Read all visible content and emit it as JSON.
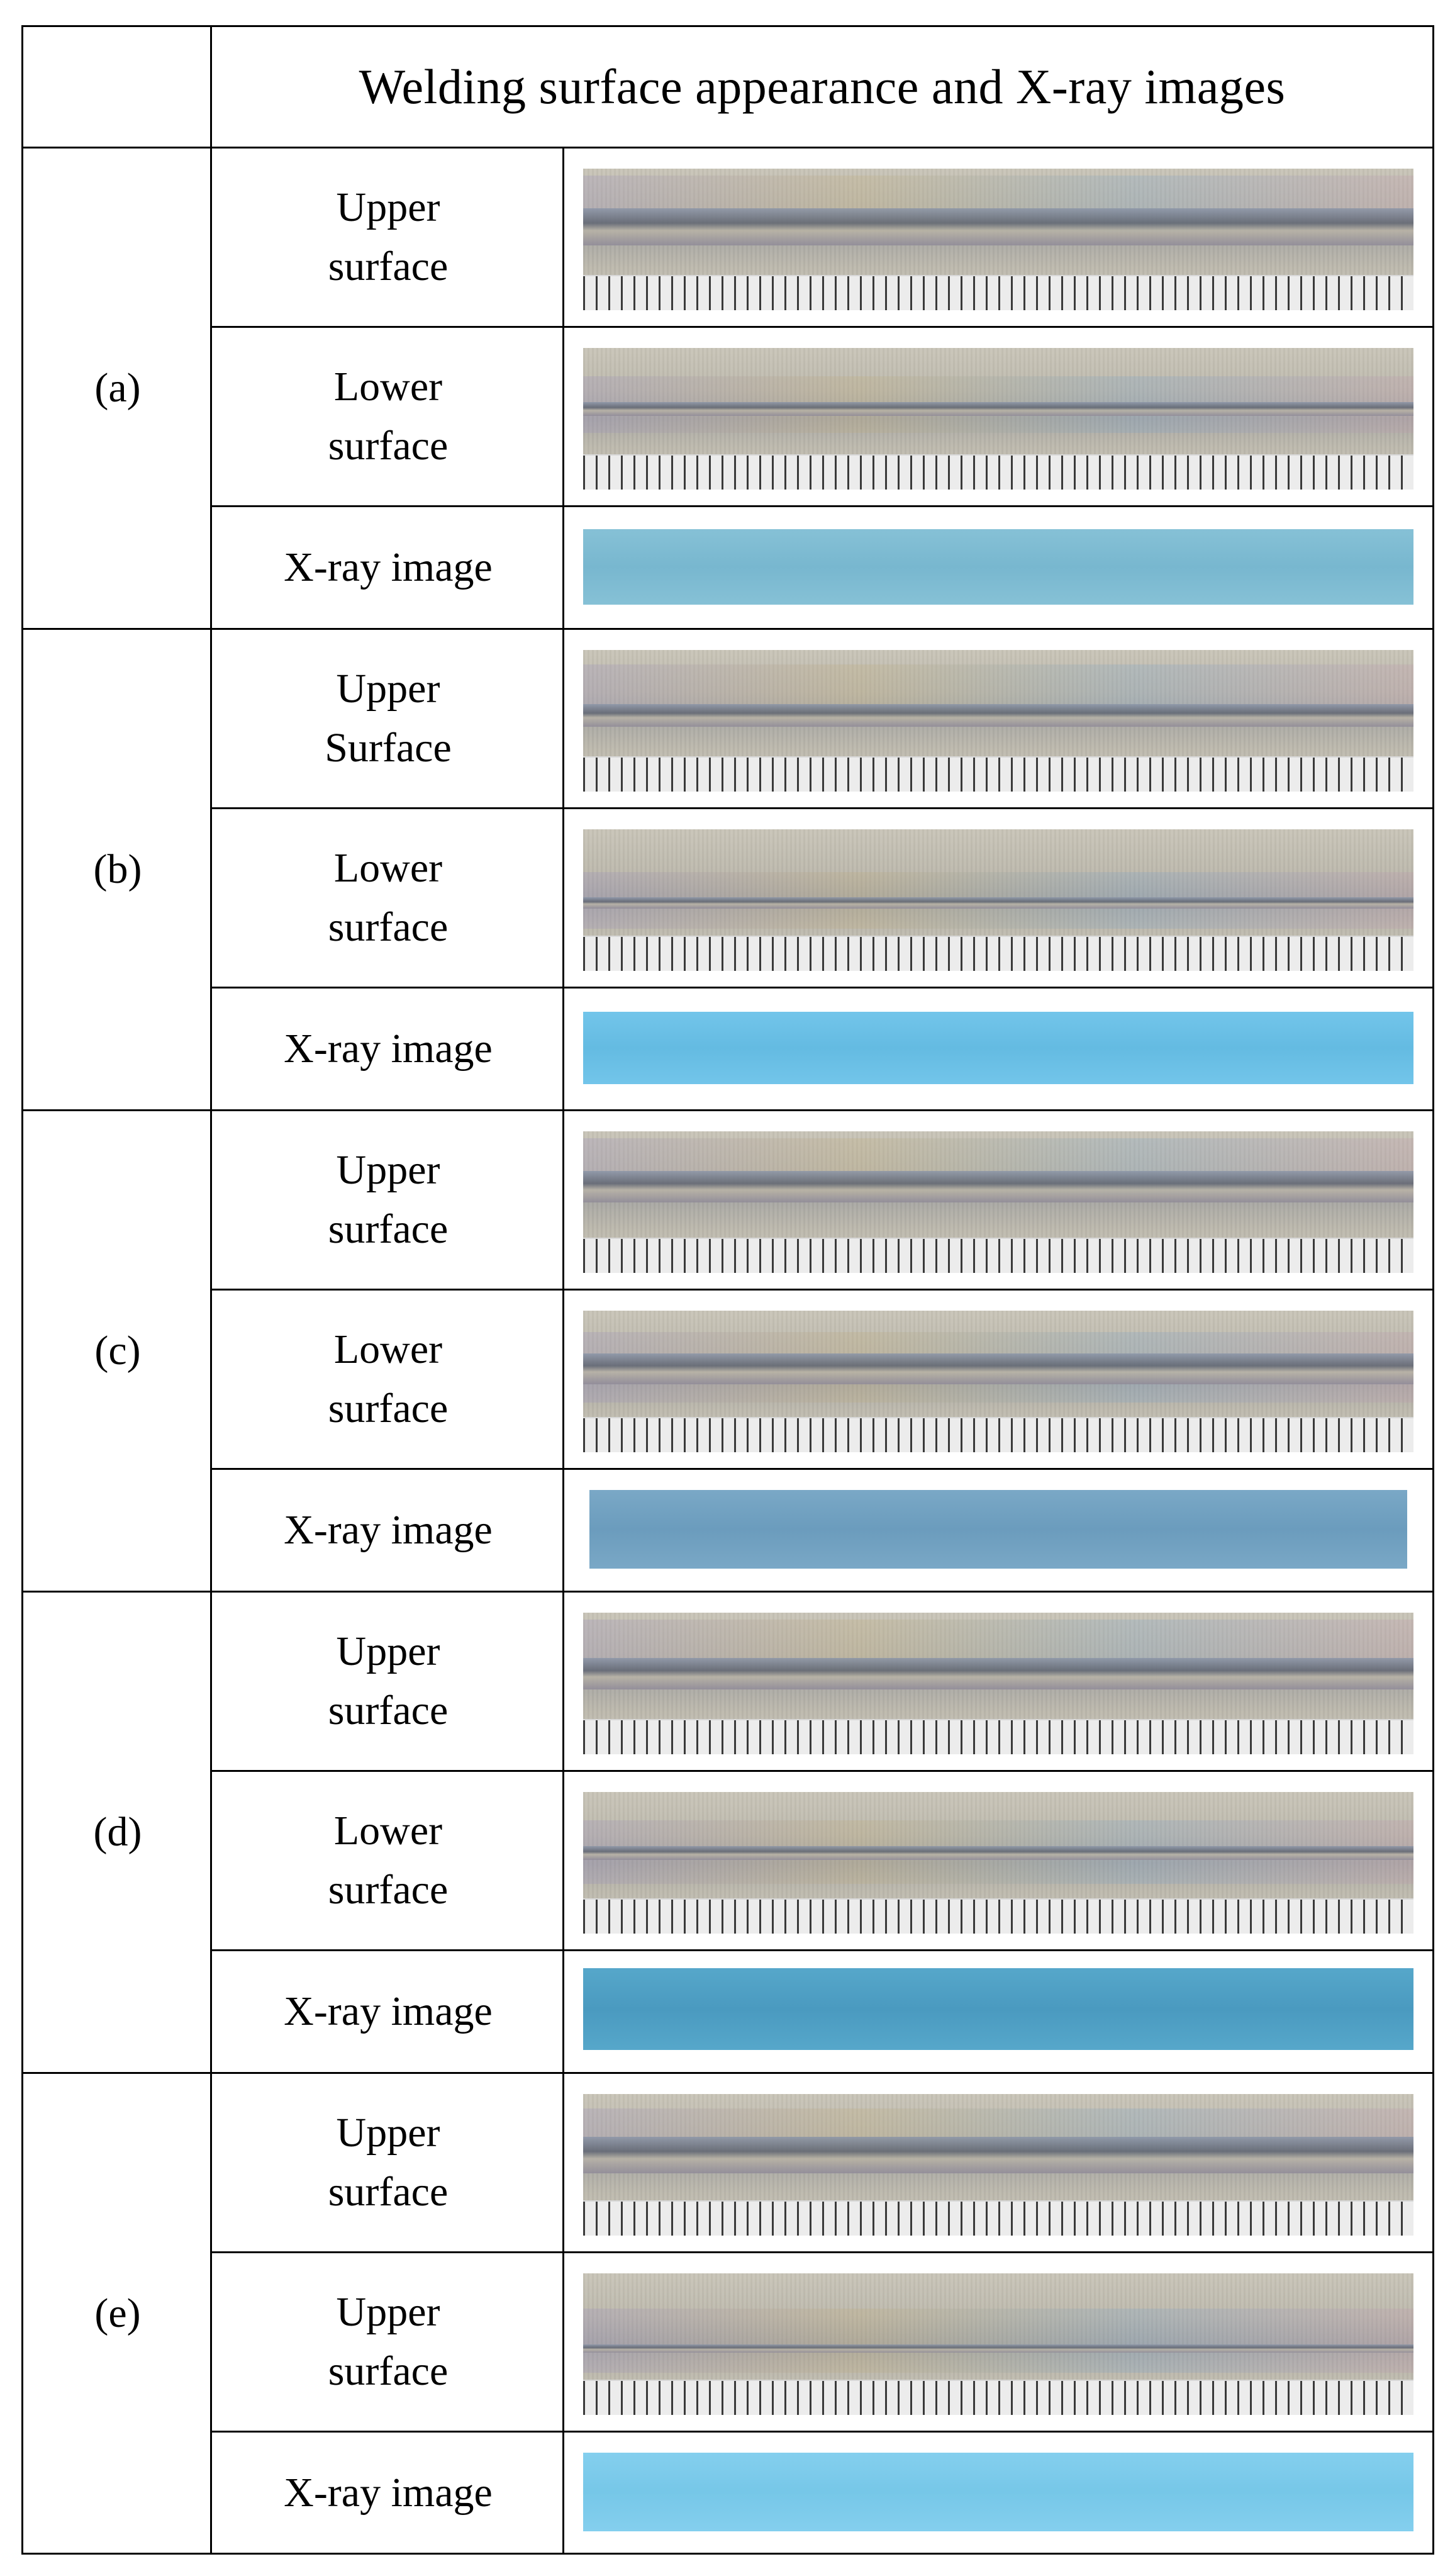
{
  "header": {
    "title": "Welding surface appearance and X-ray images"
  },
  "groups": [
    {
      "label": "(a)",
      "rows": [
        "Upper\nsurface",
        "Lower\nsurface",
        "X-ray image"
      ]
    },
    {
      "label": "(b)",
      "rows": [
        "Upper\nSurface",
        "Lower\nsurface",
        "X-ray image"
      ]
    },
    {
      "label": "(c)",
      "rows": [
        "Upper\nsurface",
        "Lower\nsurface",
        "X-ray image"
      ]
    },
    {
      "label": "(d)",
      "rows": [
        "Upper\nsurface",
        "Lower\nsurface",
        "X-ray image"
      ]
    },
    {
      "label": "(e)",
      "rows": [
        "Upper\nsurface",
        "Upper\nsurface",
        "X-ray image"
      ]
    }
  ],
  "colors": {
    "border": "#000000",
    "metal": "#bdb9ad",
    "xray_a": "#7fbcd2",
    "xray_b": "#6cc0e6",
    "xray_c": "#6e9ec0",
    "xray_d": "#4d9ec2",
    "xray_e": "#7ccbea"
  }
}
